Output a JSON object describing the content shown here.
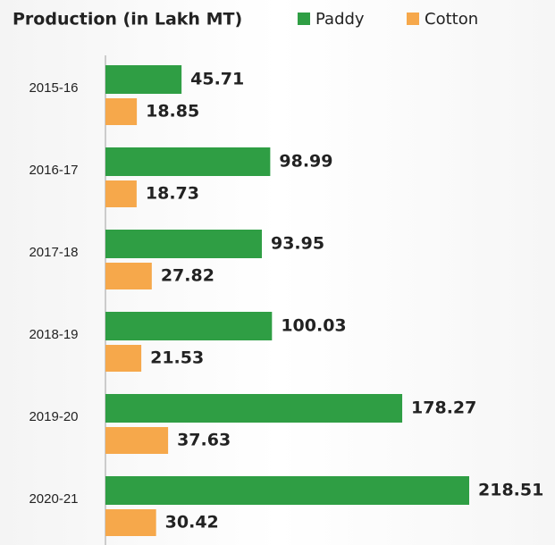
{
  "chart_data": {
    "type": "bar",
    "orientation": "horizontal",
    "title": "Production (in Lakh MT)",
    "categories": [
      "2015-16",
      "2016-17",
      "2017-18",
      "2018-19",
      "2019-20",
      "2020-21"
    ],
    "series": [
      {
        "name": "Paddy",
        "color": "#2f9e44",
        "values": [
          45.71,
          98.99,
          93.95,
          100.03,
          178.27,
          218.51
        ]
      },
      {
        "name": "Cotton",
        "color": "#f6a84b",
        "values": [
          18.85,
          18.73,
          27.82,
          21.53,
          37.63,
          30.42
        ]
      }
    ]
  }
}
